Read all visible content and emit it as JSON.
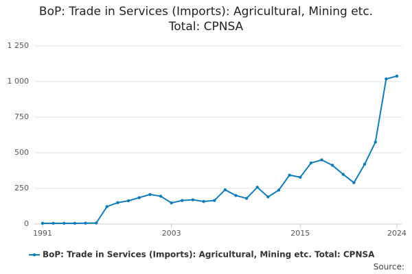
{
  "chart_data": {
    "type": "line",
    "title": "BoP: Trade in Services (Imports): Agricultural, Mining etc. Total: CPNSA",
    "source": "Source:",
    "x": [
      1991,
      1992,
      1993,
      1994,
      1995,
      1996,
      1997,
      1998,
      1999,
      2000,
      2001,
      2002,
      2003,
      2004,
      2005,
      2006,
      2007,
      2008,
      2009,
      2010,
      2011,
      2012,
      2013,
      2014,
      2015,
      2016,
      2017,
      2018,
      2019,
      2020,
      2021,
      2022,
      2023,
      2024
    ],
    "series": [
      {
        "name": "BoP: Trade in Services (Imports): Agricultural, Mining etc. Total: CPNSA",
        "color": "#0f7bba",
        "values": [
          5,
          5,
          5,
          5,
          6,
          7,
          122,
          150,
          163,
          185,
          207,
          195,
          148,
          165,
          170,
          158,
          165,
          240,
          200,
          180,
          258,
          190,
          238,
          343,
          328,
          428,
          450,
          412,
          348,
          290,
          420,
          575,
          1018,
          1038
        ]
      }
    ],
    "xlim": [
      1991,
      2024
    ],
    "xticks": [
      1991,
      2003,
      2015,
      2024
    ],
    "ylim": [
      0,
      1250
    ],
    "yticks": [
      0,
      250,
      500,
      750,
      {
        "value": 1000,
        "label": "1 000"
      },
      {
        "value": 1250,
        "label": "1 250"
      }
    ],
    "grid": true,
    "legend": "bottom"
  }
}
